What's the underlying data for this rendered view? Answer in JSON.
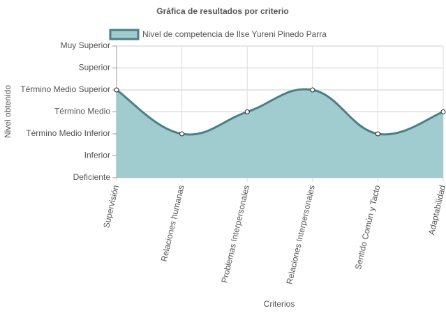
{
  "chart_data": {
    "type": "line",
    "title": "Gráfica de resultados por criterio",
    "x_label": "Criterios",
    "y_label": "Nivel obtenido",
    "categories": [
      "Supervisión",
      "Relaciones humanas",
      "Problemas Interpersonales",
      "Relaciones Interpersonales",
      "Sentido Común y Tacto",
      "Adaptabilidad"
    ],
    "series": [
      {
        "name": "Nivel de competencia de Ilse Yureni Pinedo  Parra",
        "color": "#4e7e84",
        "fill": "#a0cccf",
        "values": [
          4,
          2,
          3,
          4,
          2,
          3
        ]
      }
    ],
    "ylim": [
      0,
      6
    ],
    "yticks": [
      {
        "value": 0,
        "label": "Deficiente"
      },
      {
        "value": 1,
        "label": "Inferior"
      },
      {
        "value": 2,
        "label": "Término Medio Inferior"
      },
      {
        "value": 3,
        "label": "Término Medio"
      },
      {
        "value": 4,
        "label": "Término Medio Superior"
      },
      {
        "value": 5,
        "label": "Superior"
      },
      {
        "value": 6,
        "label": "Muy Superior"
      }
    ],
    "grid": true,
    "legend": "top"
  }
}
